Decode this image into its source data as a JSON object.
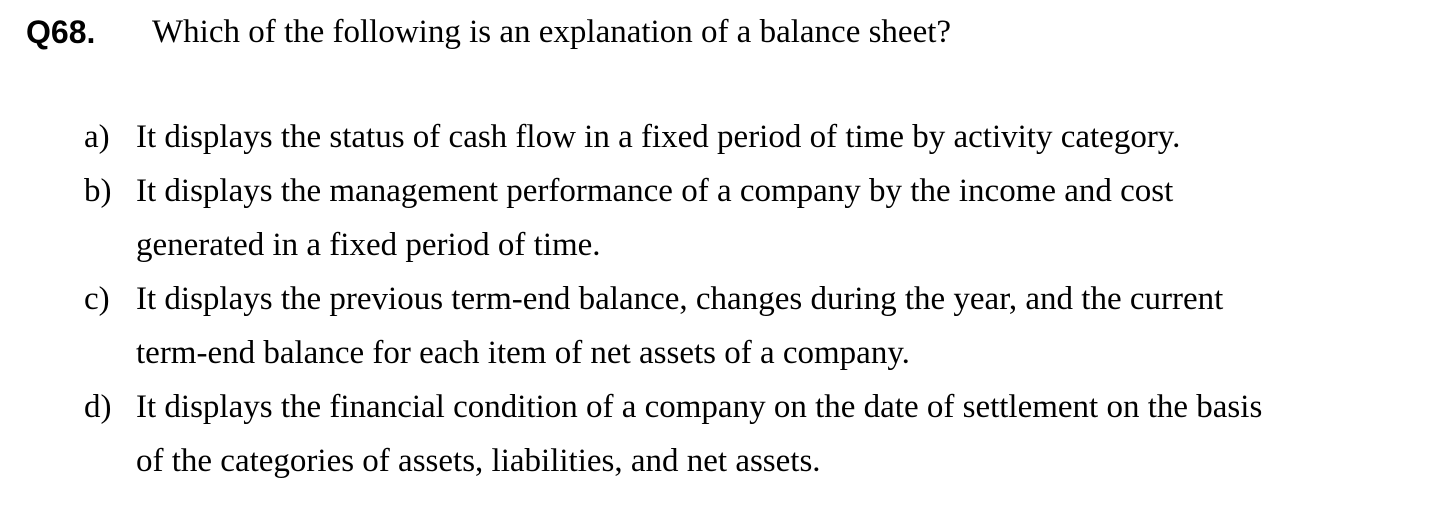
{
  "question": {
    "number": "Q68.",
    "text": "Which of the following is an explanation of a balance sheet?"
  },
  "options": [
    {
      "letter": "a)",
      "lines": [
        "It displays the status of cash flow in a fixed period of time by activity category."
      ]
    },
    {
      "letter": "b)",
      "lines": [
        "It displays the management performance of a company by the income and cost",
        "generated in a fixed period of time."
      ]
    },
    {
      "letter": "c)",
      "lines": [
        "It displays the previous term-end balance, changes during the year, and the current",
        "term-end balance for each item of net assets of a company."
      ]
    },
    {
      "letter": "d)",
      "lines": [
        "It displays the financial condition of a company on the date of settlement on the basis",
        "of the categories of assets, liabilities, and net assets."
      ]
    }
  ]
}
